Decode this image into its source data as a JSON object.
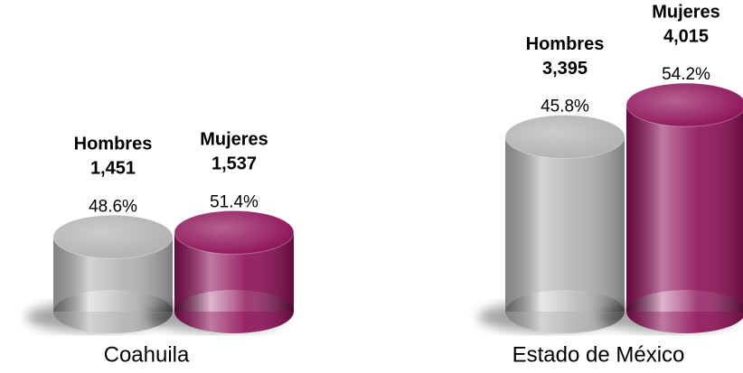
{
  "chart_data": {
    "type": "cylinder",
    "categories": [
      "Coahuila",
      "Estado de México"
    ],
    "series": [
      {
        "name": "Hombres",
        "color": "#b0b0b0",
        "values": [
          1451,
          3395
        ],
        "value_labels": [
          "1,451",
          "3,395"
        ],
        "shares": [
          48.6,
          45.8
        ],
        "share_labels": [
          "48.6%",
          "45.8%"
        ]
      },
      {
        "name": "Mujeres",
        "color": "#8c0d55",
        "values": [
          1537,
          4015
        ],
        "value_labels": [
          "1,537",
          "4,015"
        ],
        "shares": [
          51.4,
          54.2
        ],
        "share_labels": [
          "51.4%",
          "54.2%"
        ]
      }
    ]
  }
}
